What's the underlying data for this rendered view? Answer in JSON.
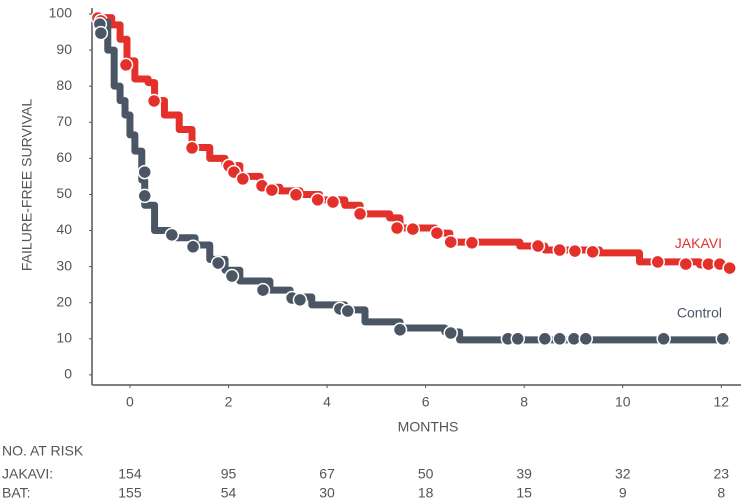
{
  "chart_data": {
    "type": "km",
    "xlabel": "MONTHS",
    "ylabel": "FAILURE-FREE SURVIVAL",
    "xlim": [
      -0.77,
      12.4
    ],
    "ylim": [
      -2.8,
      100
    ],
    "xticks": [
      0,
      2,
      4,
      6,
      8,
      10,
      12
    ],
    "yticks": [
      0,
      10,
      20,
      30,
      40,
      50,
      60,
      70,
      80,
      90,
      100
    ],
    "series": [
      {
        "name": "JAKAVI",
        "color": "#e3302b",
        "x": [
          -0.6,
          -0.37,
          -0.2,
          -0.06,
          0.1,
          0.37,
          0.5,
          0.7,
          1.0,
          1.26,
          1.62,
          1.93,
          2.23,
          2.64,
          3.04,
          3.45,
          3.85,
          4.36,
          4.67,
          5.27,
          5.48,
          6.19,
          6.49,
          7.91,
          8.42,
          9.53,
          10.34,
          11.56,
          12.17
        ],
        "values": [
          99,
          97,
          93,
          87,
          82,
          81,
          76,
          72,
          68,
          63,
          60,
          58,
          55,
          52,
          51,
          50,
          48.5,
          47,
          44.6,
          43.5,
          40.7,
          39.3,
          36.8,
          35.7,
          34.6,
          33.8,
          31.3,
          30.5,
          29
        ],
        "censor_x": [
          -0.65,
          -0.59,
          -0.08,
          0.49,
          1.26,
          2.01,
          2.11,
          2.29,
          2.68,
          2.88,
          3.37,
          3.81,
          4.12,
          4.67,
          5.42,
          5.74,
          6.23,
          6.51,
          6.94,
          8.28,
          8.72,
          9.03,
          9.39,
          10.71,
          11.28,
          11.74,
          11.97,
          12.17
        ],
        "censor_y": [
          98.9,
          98.1,
          85.9,
          75.9,
          62.9,
          57.9,
          56.2,
          54.3,
          52.4,
          51.2,
          49.9,
          48.5,
          47.9,
          44.6,
          40.7,
          40.4,
          39.3,
          36.8,
          36.6,
          35.7,
          34.6,
          34.3,
          34.1,
          31.3,
          30.7,
          30.7,
          30.7,
          29.6
        ]
      },
      {
        "name": "Control",
        "color": "#4b5664",
        "x": [
          -0.6,
          -0.45,
          -0.32,
          -0.2,
          -0.1,
          0,
          0.1,
          0.24,
          0.3,
          0.5,
          0.81,
          1.32,
          1.62,
          1.93,
          2.23,
          2.84,
          3.25,
          3.69,
          4.36,
          4.77,
          5.48,
          6.39,
          6.69,
          12.17
        ],
        "values": [
          97.8,
          90,
          80,
          76,
          72,
          66.5,
          62,
          54,
          47,
          40,
          38,
          36,
          32,
          29,
          26,
          23.5,
          21.6,
          19.4,
          18,
          14.7,
          13,
          11.9,
          9.7,
          9.7
        ],
        "censor_x": [
          -0.61,
          -0.59,
          0.3,
          0.3,
          0.85,
          1.28,
          1.79,
          2.07,
          2.7,
          3.29,
          3.45,
          4.26,
          4.42,
          5.48,
          6.51,
          7.67,
          7.87,
          8.42,
          8.72,
          9.01,
          9.25,
          10.83,
          12.03
        ],
        "censor_y": [
          97.2,
          94.7,
          56.2,
          49.6,
          38.8,
          35.5,
          31.0,
          27.4,
          23.5,
          21.3,
          20.8,
          18.3,
          17.7,
          12.5,
          11.6,
          10,
          10,
          10,
          10,
          10,
          10,
          10,
          10
        ]
      }
    ],
    "risk_table": {
      "title": "NO. AT RISK",
      "rows": [
        {
          "label": "JAKAVI:",
          "values": [
            154,
            95,
            67,
            50,
            39,
            32,
            23
          ]
        },
        {
          "label": "BAT:",
          "values": [
            155,
            54,
            30,
            18,
            15,
            9,
            8
          ]
        }
      ]
    }
  }
}
